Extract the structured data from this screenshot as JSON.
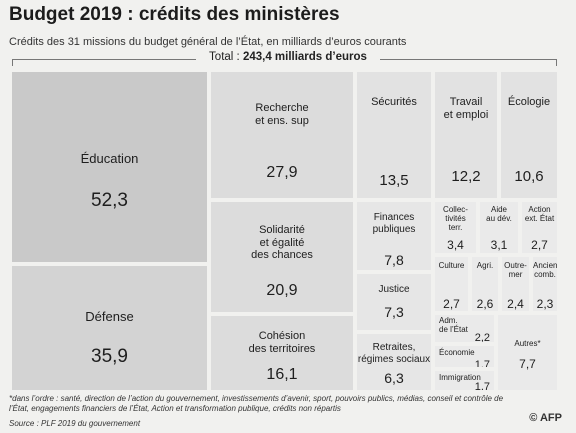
{
  "header": {
    "title": "Budget 2019 : crédits des ministères",
    "subtitle": "Crédits des 31 missions du budget général de l’État, en milliards d’euros courants",
    "total_prefix": "Total : ",
    "total_value": "243,4 milliards d’euros"
  },
  "chart_data": {
    "type": "treemap",
    "title": "Budget 2019 : crédits des ministères",
    "subtitle": "Crédits des 31 missions du budget général de l’État, en milliards d’euros courants",
    "total": 243.4,
    "unit": "milliards d’euros",
    "items": [
      {
        "id": "education",
        "label": "Éducation",
        "display": "52,3",
        "value": 52.3,
        "color": "#c9c9c9"
      },
      {
        "id": "defense",
        "label": "Défense",
        "display": "35,9",
        "value": 35.9,
        "color": "#d3d3d3"
      },
      {
        "id": "recherche",
        "label": "Recherche\net ens. sup",
        "display": "27,9",
        "value": 27.9,
        "color": "#dcdcdc"
      },
      {
        "id": "solidarite",
        "label": "Solidarité\net égalité\ndes chances",
        "display": "20,9",
        "value": 20.9,
        "color": "#dcdcdc"
      },
      {
        "id": "cohesion",
        "label": "Cohésion\ndes territoires",
        "display": "16,1",
        "value": 16.1,
        "color": "#dcdcdc"
      },
      {
        "id": "securites",
        "label": "Sécurités",
        "display": "13,5",
        "value": 13.5,
        "color": "#e2e2e2"
      },
      {
        "id": "travail",
        "label": "Travail\net emploi",
        "display": "12,2",
        "value": 12.2,
        "color": "#e2e2e2"
      },
      {
        "id": "ecologie",
        "label": "Écologie",
        "display": "10,6",
        "value": 10.6,
        "color": "#e2e2e2"
      },
      {
        "id": "finances",
        "label": "Finances\npubliques",
        "display": "7,8",
        "value": 7.8,
        "color": "#e6e6e6"
      },
      {
        "id": "justice",
        "label": "Justice",
        "display": "7,3",
        "value": 7.3,
        "color": "#e6e6e6"
      },
      {
        "id": "retraites",
        "label": "Retraites,\nrégimes sociaux",
        "display": "6,3",
        "value": 6.3,
        "color": "#e6e6e6"
      },
      {
        "id": "collectivites",
        "label": "Collec-\ntivités\nterr.",
        "display": "3,4",
        "value": 3.4,
        "color": "#eaeaea"
      },
      {
        "id": "aide",
        "label": "Aide\nau dév.",
        "display": "3,1",
        "value": 3.1,
        "color": "#eaeaea"
      },
      {
        "id": "action",
        "label": "Action\next. État",
        "display": "2,7",
        "value": 2.7,
        "color": "#eaeaea"
      },
      {
        "id": "culture",
        "label": "Culture",
        "display": "2,7",
        "value": 2.7,
        "color": "#eaeaea"
      },
      {
        "id": "agri",
        "label": "Agri.",
        "display": "2,6",
        "value": 2.6,
        "color": "#eaeaea"
      },
      {
        "id": "outremer",
        "label": "Outre-\nmer",
        "display": "2,4",
        "value": 2.4,
        "color": "#eaeaea"
      },
      {
        "id": "anciens",
        "label": "Anciens\ncomb.",
        "display": "2,3",
        "value": 2.3,
        "color": "#eaeaea"
      },
      {
        "id": "adm",
        "label": "Adm.\nde l’État",
        "display": "2,2",
        "value": 2.2,
        "color": "#eaeaea"
      },
      {
        "id": "economie",
        "label": "Économie",
        "display": "1,7",
        "value": 1.7,
        "color": "#eaeaea"
      },
      {
        "id": "immigration",
        "label": "Immigration",
        "display": "1,7",
        "value": 1.7,
        "color": "#eaeaea"
      },
      {
        "id": "autres",
        "label": "Autres*",
        "display": "7,7",
        "value": 7.7,
        "color": "#eaeaea"
      }
    ]
  },
  "footer": {
    "note": "*dans l’ordre : santé, direction de l’action du gouvernement, investissements d’avenir, sport, pouvoirs publics, médias, conseil et contrôle de l’État, engagements financiers de l’État, Action et transformation publique, crédits non répartis",
    "source": "Source : PLF 2019 du gouvernement",
    "credit": "© AFP"
  }
}
